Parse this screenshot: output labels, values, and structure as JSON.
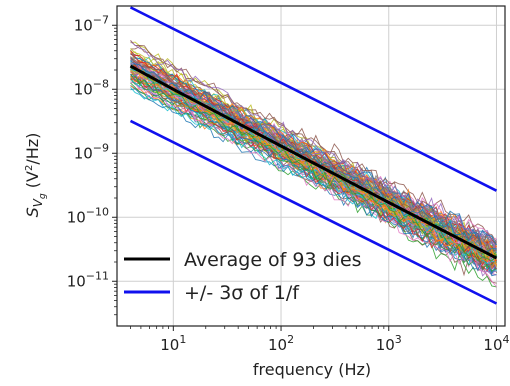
{
  "chart_data": {
    "type": "line",
    "xlabel": "frequency (Hz)",
    "ylabel_main": "S",
    "ylabel_sub": "V",
    "ylabel_subsub": "g",
    "ylabel_unit_pre": " (V",
    "ylabel_unit_sup": "2",
    "ylabel_unit_post": "/Hz)",
    "x_scale": "log",
    "y_scale": "log",
    "xlim": [
      3,
      12000
    ],
    "ylim": [
      2e-12,
      2e-07
    ],
    "grid": true,
    "x_ticks": [
      {
        "value": 10,
        "base": "10",
        "exp": "1"
      },
      {
        "value": 100,
        "base": "10",
        "exp": "2"
      },
      {
        "value": 1000,
        "base": "10",
        "exp": "3"
      },
      {
        "value": 10000,
        "base": "10",
        "exp": "4"
      }
    ],
    "y_ticks": [
      {
        "value": 1e-07,
        "base": "10",
        "exp": "−7"
      },
      {
        "value": 1e-08,
        "base": "10",
        "exp": "−8"
      },
      {
        "value": 1e-09,
        "base": "10",
        "exp": "−9"
      },
      {
        "value": 1e-10,
        "base": "10",
        "exp": "−10"
      },
      {
        "value": 1e-11,
        "base": "10",
        "exp": "−11"
      }
    ],
    "legend_position": "bottom-left",
    "legend": [
      {
        "label": "Average of 93 dies",
        "color": "#000000"
      },
      {
        "label": "+/- 3σ of 1/f",
        "color": "#1010ee"
      }
    ],
    "dies_count": 93,
    "series": [
      {
        "name": "Average of 93 dies",
        "color": "#000000",
        "x": [
          4,
          10,
          100,
          1000,
          10000
        ],
        "y": [
          2.3e-08,
          1e-08,
          1.3e-09,
          1.7e-10,
          2.3e-11
        ]
      },
      {
        "name": "+3σ of 1/f",
        "color": "#1010ee",
        "x": [
          4,
          10000
        ],
        "y": [
          1.9e-07,
          2.6e-10
        ]
      },
      {
        "name": "-3σ of 1/f",
        "color": "#1010ee",
        "x": [
          4,
          10000
        ],
        "y": [
          3.2e-09,
          4.5e-12
        ]
      }
    ],
    "die_colors": [
      "#1f77b4",
      "#ff7f0e",
      "#2ca02c",
      "#d62728",
      "#9467bd",
      "#8c564b",
      "#e377c2",
      "#7f7f7f",
      "#bcbd22",
      "#17becf"
    ]
  }
}
